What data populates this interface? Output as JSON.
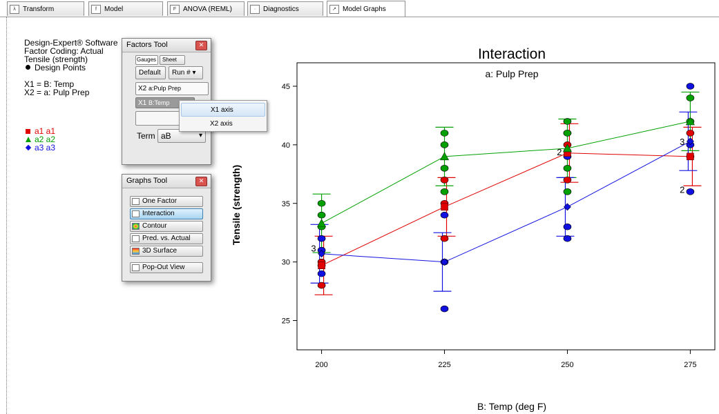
{
  "tabs": [
    {
      "label": "Transform",
      "icon": "transform-icon",
      "active": false
    },
    {
      "label": "Model",
      "icon": "model-icon",
      "active": false
    },
    {
      "label": "ANOVA (REML)",
      "icon": "anova-icon",
      "active": false
    },
    {
      "label": "Diagnostics",
      "icon": "diagnostics-icon",
      "active": false
    },
    {
      "label": "Model Graphs",
      "icon": "model-graphs-icon",
      "active": true
    }
  ],
  "info": {
    "line1": "Design-Expert® Software",
    "line2": "Factor Coding: Actual",
    "line3": "Tensile (strength)",
    "line4": "Design Points",
    "x1": "X1 = B: Temp",
    "x2": "X2 = a: Pulp Prep"
  },
  "legend": [
    "a1 a1",
    "a2 a2",
    "a3 a3"
  ],
  "factors_tool": {
    "title": "Factors Tool",
    "tab_gauges": "Gauges",
    "tab_sheet": "Sheet",
    "default_btn": "Default",
    "run_btn": "Run #",
    "x2_label": "X2",
    "x2_value": "a:Pulp Prep",
    "x1_label": "X1",
    "x1_value": "B:Temp",
    "term_label": "Term",
    "term_value": "aB"
  },
  "context_menu": [
    "X1 axis",
    "X2 axis"
  ],
  "graphs_tool": {
    "title": "Graphs Tool",
    "buttons": [
      "One Factor",
      "Interaction",
      "Contour",
      "Pred. vs. Actual",
      "3D Surface"
    ],
    "popout": "Pop-Out View"
  },
  "chart_data": {
    "type": "line",
    "title": "Interaction",
    "subtitle": "a: Pulp Prep",
    "xlabel": "B: Temp (deg F)",
    "ylabel": "Tensile (strength)",
    "x": [
      200,
      225,
      250,
      275
    ],
    "xlim": [
      195,
      280
    ],
    "ylim": [
      22.5,
      47
    ],
    "yticks": [
      25,
      30,
      35,
      40,
      45
    ],
    "series": [
      {
        "name": "a1 a1",
        "color": "#e00000",
        "marker": "square",
        "values": [
          29.7,
          34.7,
          39.3,
          39.0
        ],
        "err_low": [
          27.2,
          32.2,
          36.8,
          36.5
        ],
        "err_high": [
          32.2,
          37.2,
          41.8,
          41.5
        ],
        "points": [
          [
            200,
            28
          ],
          [
            200,
            29.7
          ],
          [
            200,
            30
          ],
          [
            225,
            32
          ],
          [
            225,
            35
          ],
          [
            225,
            37
          ],
          [
            250,
            37
          ],
          [
            250,
            40
          ],
          [
            250,
            41
          ],
          [
            275,
            39
          ],
          [
            275,
            41
          ]
        ],
        "counts": [
          [
            275,
            36.2,
            "2"
          ]
        ]
      },
      {
        "name": "a2 a2",
        "color": "#00a000",
        "marker": "triangle",
        "values": [
          33.3,
          39.0,
          39.7,
          42.0
        ],
        "err_low": [
          30.8,
          36.5,
          37.2,
          39.5
        ],
        "err_high": [
          35.8,
          41.5,
          42.2,
          44.5
        ],
        "points": [
          [
            200,
            33
          ],
          [
            200,
            34
          ],
          [
            200,
            35
          ],
          [
            225,
            36
          ],
          [
            225,
            38
          ],
          [
            225,
            40
          ],
          [
            225,
            41
          ],
          [
            250,
            36
          ],
          [
            250,
            38
          ],
          [
            250,
            41
          ],
          [
            250,
            42
          ],
          [
            275,
            42
          ],
          [
            275,
            44
          ]
        ],
        "counts": [
          [
            250,
            39.4,
            "2"
          ]
        ]
      },
      {
        "name": "a3 a3",
        "color": "#1010e0",
        "marker": "diamond",
        "values": [
          30.7,
          30.0,
          34.7,
          40.3
        ],
        "err_low": [
          28.2,
          27.5,
          32.2,
          37.8
        ],
        "err_high": [
          33.2,
          32.5,
          37.2,
          42.8
        ],
        "points": [
          [
            200,
            29
          ],
          [
            200,
            31
          ],
          [
            200,
            32
          ],
          [
            225,
            26
          ],
          [
            225,
            30
          ],
          [
            225,
            34
          ],
          [
            250,
            32
          ],
          [
            250,
            33
          ],
          [
            250,
            39
          ],
          [
            275,
            36
          ],
          [
            275,
            40
          ],
          [
            275,
            45
          ]
        ],
        "counts": [
          [
            200,
            31.2,
            "3"
          ],
          [
            275,
            40.3,
            "3"
          ]
        ]
      }
    ]
  }
}
